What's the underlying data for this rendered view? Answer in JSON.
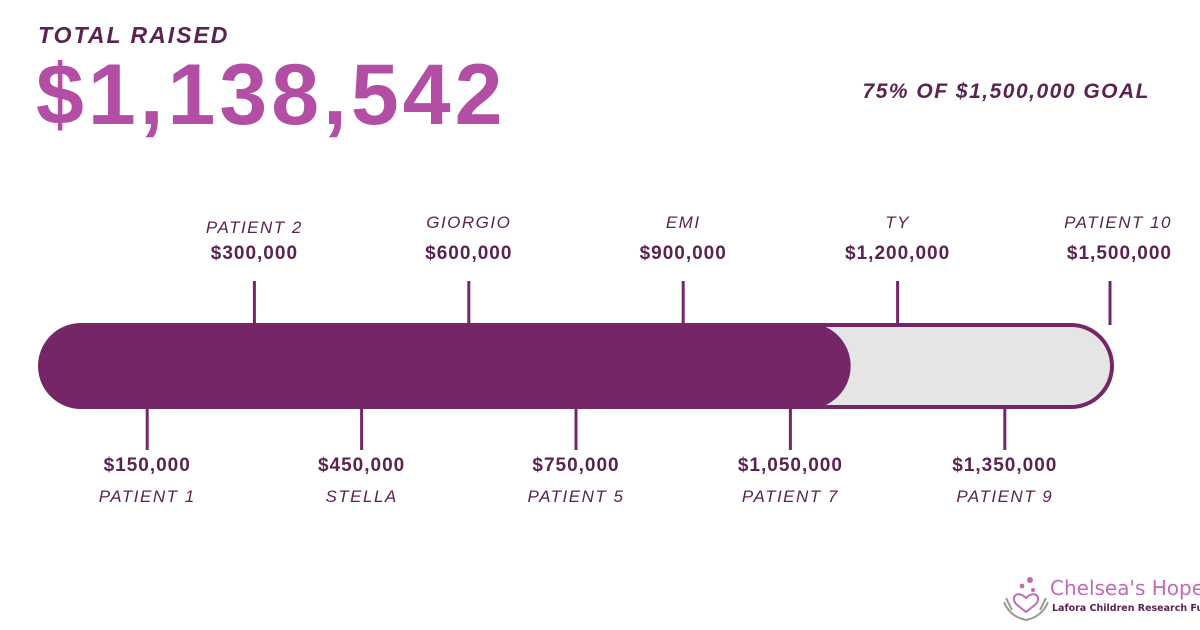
{
  "header": {
    "total_label": "TOTAL RAISED",
    "total_amount": "$1,138,542",
    "goal_text": "75% OF $1,500,000 GOAL"
  },
  "colors": {
    "fill": "#752667",
    "track": "#e5e5e5",
    "text_dark": "#5a2350",
    "amount_accent": "#b24ea3"
  },
  "chart_data": {
    "type": "bar",
    "orientation": "horizontal-progress",
    "raised": 1138542,
    "goal": 1500000,
    "percent": 75,
    "range": [
      0,
      1500000
    ],
    "milestones": [
      {
        "value": 150000,
        "amount_label": "$150,000",
        "name": "PATIENT 1",
        "side": "bottom"
      },
      {
        "value": 300000,
        "amount_label": "$300,000",
        "name": "PATIENT 2",
        "side": "top"
      },
      {
        "value": 450000,
        "amount_label": "$450,000",
        "name": "STELLA",
        "side": "bottom"
      },
      {
        "value": 600000,
        "amount_label": "$600,000",
        "name": "GIORGIO",
        "side": "top"
      },
      {
        "value": 750000,
        "amount_label": "$750,000",
        "name": "PATIENT 5",
        "side": "bottom"
      },
      {
        "value": 900000,
        "amount_label": "$900,000",
        "name": "EMI",
        "side": "top"
      },
      {
        "value": 1050000,
        "amount_label": "$1,050,000",
        "name": "PATIENT 7",
        "side": "bottom"
      },
      {
        "value": 1200000,
        "amount_label": "$1,200,000",
        "name": "TY",
        "side": "top"
      },
      {
        "value": 1350000,
        "amount_label": "$1,350,000",
        "name": "PATIENT 9",
        "side": "bottom"
      },
      {
        "value": 1500000,
        "amount_label": "$1,500,000",
        "name": "PATIENT 10",
        "side": "top"
      }
    ]
  },
  "logo": {
    "name": "Chelsea's Hope",
    "subtitle": "Lafora Children Research Fund",
    "icon": "hands-heart-icon"
  }
}
